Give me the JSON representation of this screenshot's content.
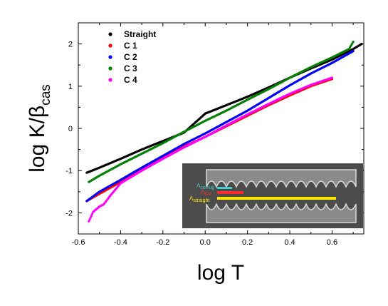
{
  "chart_data": {
    "type": "scatter",
    "title": "",
    "xlabel": "log T",
    "ylabel_main": "log K/β",
    "ylabel_sub": "cas",
    "xlim": [
      -0.6,
      0.75
    ],
    "ylim": [
      -2.5,
      2.5
    ],
    "x_ticks": [
      -0.6,
      -0.4,
      -0.2,
      0.0,
      0.2,
      0.4,
      0.6
    ],
    "x_tick_labels": [
      "-0.6",
      "-0.4",
      "-0.2",
      "0.0",
      "0.2",
      "0.4",
      "0.6"
    ],
    "y_ticks": [
      -2,
      -1,
      0,
      1,
      2
    ],
    "y_tick_labels": [
      "-2",
      "-1",
      "0",
      "1",
      "2"
    ],
    "grid": false,
    "legend_position": "top-left",
    "series": [
      {
        "name": "Straight",
        "color": "#000000",
        "x": [
          -0.56,
          -0.5,
          -0.4,
          -0.3,
          -0.2,
          -0.1,
          0.0,
          0.1,
          0.2,
          0.3,
          0.4,
          0.5,
          0.6,
          0.7,
          0.74
        ],
        "y": [
          -1.05,
          -0.93,
          -0.72,
          -0.5,
          -0.3,
          -0.1,
          0.35,
          0.55,
          0.75,
          0.97,
          1.2,
          1.42,
          1.63,
          1.88,
          2.0
        ]
      },
      {
        "name": "C 1",
        "color": "#ff0000",
        "x": [
          -0.56,
          -0.5,
          -0.4,
          -0.3,
          -0.2,
          -0.1,
          0.0,
          0.1,
          0.2,
          0.3,
          0.4,
          0.5,
          0.6
        ],
        "y": [
          -1.72,
          -1.55,
          -1.27,
          -0.98,
          -0.7,
          -0.43,
          -0.2,
          0.05,
          0.3,
          0.55,
          0.78,
          1.0,
          1.17
        ]
      },
      {
        "name": "C 2",
        "color": "#0000ff",
        "x": [
          -0.56,
          -0.5,
          -0.4,
          -0.3,
          -0.2,
          -0.1,
          0.0,
          0.1,
          0.2,
          0.3,
          0.4,
          0.5,
          0.6,
          0.7
        ],
        "y": [
          -1.72,
          -1.5,
          -1.22,
          -0.93,
          -0.65,
          -0.37,
          -0.12,
          0.15,
          0.42,
          0.72,
          1.02,
          1.3,
          1.55,
          1.83
        ]
      },
      {
        "name": "C 3",
        "color": "#008000",
        "x": [
          -0.55,
          -0.5,
          -0.4,
          -0.3,
          -0.2,
          -0.1,
          0.0,
          0.1,
          0.2,
          0.3,
          0.4,
          0.5,
          0.6,
          0.68,
          0.7
        ],
        "y": [
          -1.27,
          -1.12,
          -0.85,
          -0.6,
          -0.35,
          -0.08,
          0.18,
          0.42,
          0.68,
          0.93,
          1.2,
          1.45,
          1.68,
          1.88,
          2.05
        ]
      },
      {
        "name": "C 4",
        "color": "#ff00ff",
        "x": [
          -0.55,
          -0.53,
          -0.5,
          -0.48,
          -0.45,
          -0.4,
          -0.3,
          -0.2,
          -0.1,
          0.0,
          0.1,
          0.2,
          0.3,
          0.4,
          0.5,
          0.6
        ],
        "y": [
          -2.2,
          -1.98,
          -1.85,
          -1.8,
          -1.6,
          -1.3,
          -1.0,
          -0.72,
          -0.45,
          -0.2,
          0.07,
          0.33,
          0.58,
          0.82,
          1.03,
          1.2
        ]
      }
    ]
  },
  "inset": {
    "labels": [
      {
        "main": "Λ",
        "sub": "corrug",
        "color": "#3fd0d0"
      },
      {
        "main": "Λ",
        "sub": "C4",
        "color": "#ff2a2a"
      },
      {
        "main": "Λ",
        "sub": "straight",
        "color": "#ffe600"
      }
    ]
  }
}
